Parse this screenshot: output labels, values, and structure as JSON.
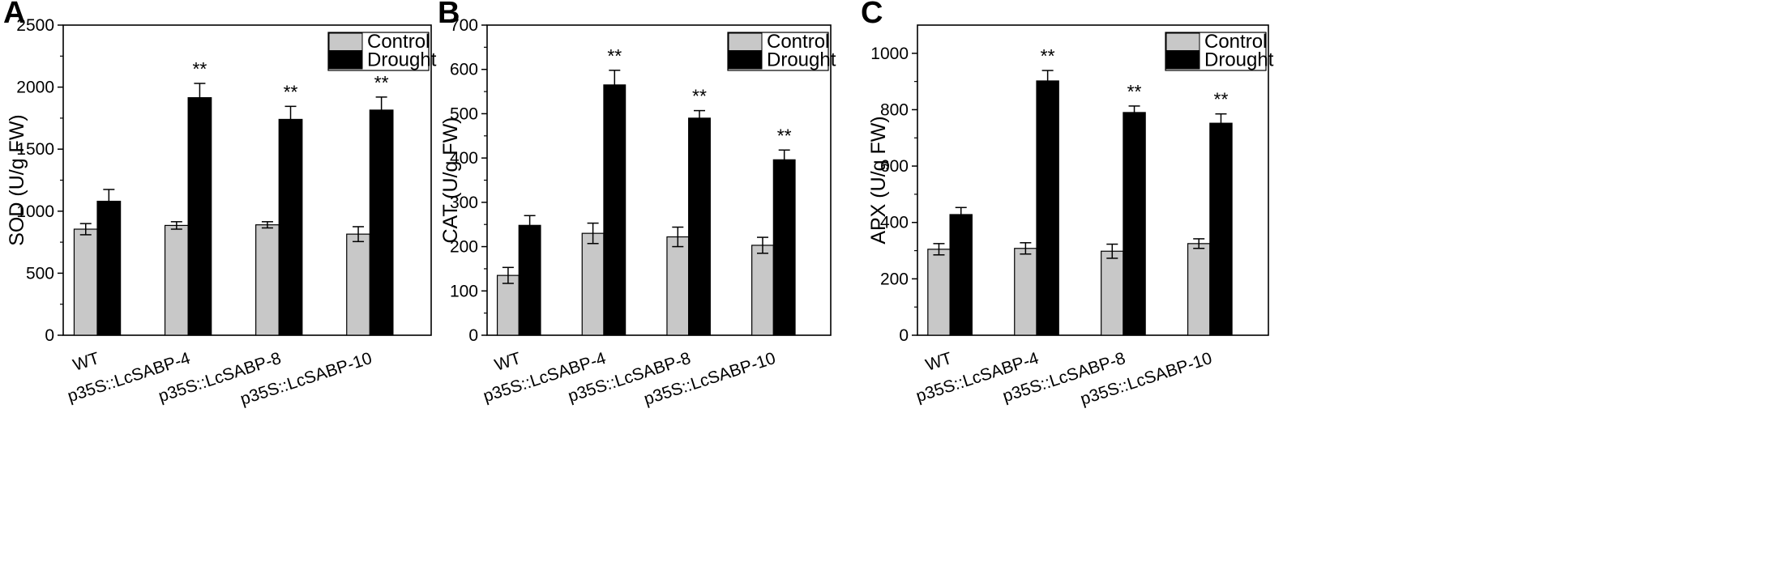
{
  "figure": {
    "panels": [
      "A",
      "B",
      "C"
    ]
  },
  "colors": {
    "control": "#c8c8c8",
    "drought": "#000000",
    "axis": "#000000",
    "background": "#ffffff"
  },
  "chart_data": [
    {
      "type": "bar",
      "panel": "A",
      "title": "",
      "xlabel": "",
      "ylabel": "SOD (U/g FW)",
      "ylim": [
        0,
        2500
      ],
      "yticks": [
        0,
        500,
        1000,
        1500,
        2000,
        2500
      ],
      "categories": [
        "WT",
        "p35S::LcSABP-4",
        "p35S::LcSABP-8",
        "p35S::LcSABP-10"
      ],
      "series": [
        {
          "name": "Control",
          "values": [
            855,
            885,
            890,
            815
          ],
          "errors": [
            45,
            30,
            25,
            60
          ]
        },
        {
          "name": "Drought",
          "values": [
            1080,
            1915,
            1740,
            1815
          ],
          "errors": [
            95,
            115,
            105,
            105
          ]
        }
      ],
      "annotations": [
        "",
        "**",
        "**",
        "**"
      ],
      "legend": "top-right"
    },
    {
      "type": "bar",
      "panel": "B",
      "title": "",
      "xlabel": "",
      "ylabel": "CAT (U/g FW)",
      "ylim": [
        0,
        700
      ],
      "yticks": [
        0,
        100,
        200,
        300,
        400,
        500,
        600,
        700
      ],
      "categories": [
        "WT",
        "p35S::LcSABP-4",
        "p35S::LcSABP-8",
        "p35S::LcSABP-10"
      ],
      "series": [
        {
          "name": "Control",
          "values": [
            135,
            230,
            222,
            203
          ],
          "errors": [
            18,
            23,
            22,
            18
          ]
        },
        {
          "name": "Drought",
          "values": [
            248,
            565,
            490,
            396
          ],
          "errors": [
            22,
            33,
            17,
            22
          ]
        }
      ],
      "annotations": [
        "",
        "**",
        "**",
        "**"
      ],
      "legend": "top-right"
    },
    {
      "type": "bar",
      "panel": "C",
      "title": "",
      "xlabel": "",
      "ylabel": "APX (U/g FW)",
      "ylim": [
        0,
        1100
      ],
      "yticks": [
        0,
        200,
        400,
        600,
        800,
        1000
      ],
      "categories": [
        "WT",
        "p35S::LcSABP-4",
        "p35S::LcSABP-8",
        "p35S::LcSABP-10"
      ],
      "series": [
        {
          "name": "Control",
          "values": [
            305,
            308,
            298,
            325
          ],
          "errors": [
            20,
            20,
            25,
            17
          ]
        },
        {
          "name": "Drought",
          "values": [
            428,
            902,
            790,
            752
          ],
          "errors": [
            25,
            37,
            23,
            33
          ]
        }
      ],
      "annotations": [
        "",
        "**",
        "**",
        "**"
      ],
      "legend": "top-right"
    }
  ]
}
